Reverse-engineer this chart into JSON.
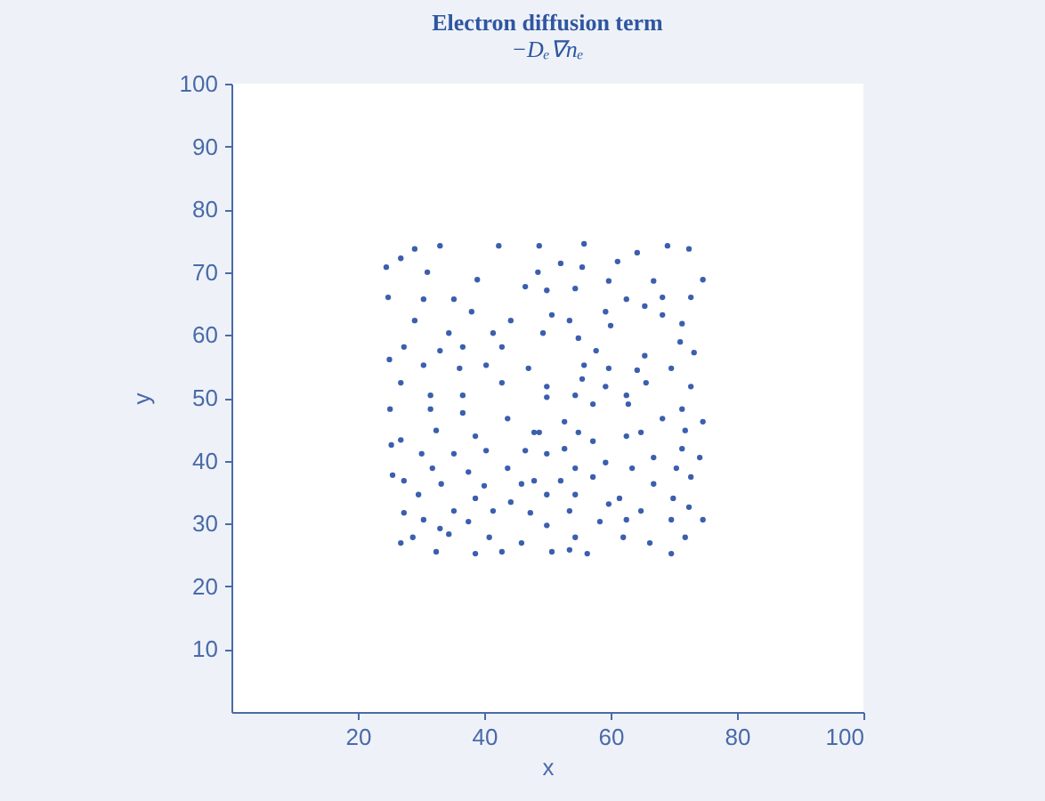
{
  "chart_data": {
    "type": "scatter",
    "title": "Electron diffusion term",
    "subtitle": "−Dₑ∇nₑ",
    "xlabel": "x",
    "ylabel": "y",
    "xlim": [
      0,
      100
    ],
    "xticks": [
      20,
      40,
      60,
      80,
      100
    ],
    "ylim": [
      0,
      100
    ],
    "yticks": [
      10,
      20,
      30,
      40,
      50,
      60,
      70,
      80,
      90,
      100
    ],
    "grid": false,
    "marker": "circle",
    "x": [
      29.0,
      33.0,
      42.3,
      26.8,
      24.5,
      31.0,
      38.9,
      46.5,
      24.8,
      30.4,
      35.2,
      38.0,
      44.2,
      29.0,
      34.4,
      41.4,
      27.3,
      33.0,
      36.6,
      42.8,
      25.0,
      30.4,
      40.3,
      36.1,
      26.8,
      47.0,
      31.5,
      42.8,
      36.6,
      48.7,
      55.8,
      64.2,
      72.4,
      52.1,
      61.1,
      69.0,
      48.5,
      55.5,
      59.7,
      66.8,
      74.6,
      49.9,
      54.4,
      62.5,
      68.2,
      72.7,
      50.7,
      59.2,
      65.4,
      68.2,
      53.5,
      49.3,
      54.9,
      60.0,
      71.3,
      57.7,
      65.4,
      71.0,
      73.2,
      55.8,
      59.7,
      64.2,
      69.6,
      49.9,
      55.5,
      59.2,
      65.6,
      72.7,
      54.4,
      62.5,
      25.1,
      31.5,
      36.6,
      43.7,
      47.9,
      26.8,
      32.4,
      38.6,
      25.3,
      30.1,
      35.2,
      40.3,
      46.5,
      31.8,
      37.5,
      43.7,
      25.5,
      27.3,
      33.2,
      40.0,
      45.9,
      29.6,
      38.6,
      44.2,
      27.3,
      35.2,
      41.4,
      47.3,
      30.4,
      33.0,
      37.5,
      28.7,
      34.4,
      40.8,
      45.9,
      26.8,
      32.4,
      38.6,
      42.8,
      49.9,
      57.2,
      62.8,
      68.2,
      71.3,
      74.6,
      52.7,
      48.7,
      54.9,
      62.5,
      64.8,
      71.8,
      52.7,
      57.2,
      66.8,
      71.3,
      74.1,
      49.9,
      54.4,
      59.2,
      63.4,
      70.4,
      72.7,
      47.9,
      52.1,
      57.2,
      66.8,
      54.4,
      61.4,
      69.9,
      49.9,
      59.7,
      53.5,
      64.8,
      72.4,
      74.6,
      49.9,
      58.3,
      62.5,
      69.6,
      54.4,
      62.0,
      66.2,
      71.8,
      50.7,
      53.5,
      56.3,
      69.6
    ],
    "values": [
      73.7,
      74.2,
      74.2,
      72.2,
      70.8,
      70.0,
      68.8,
      67.7,
      66.0,
      65.7,
      65.7,
      63.7,
      62.3,
      62.3,
      60.3,
      60.3,
      58.1,
      57.5,
      58.1,
      58.1,
      56.1,
      55.2,
      55.2,
      54.7,
      52.4,
      54.7,
      50.4,
      52.4,
      50.4,
      74.2,
      74.5,
      73.1,
      73.7,
      71.4,
      71.7,
      74.2,
      70.0,
      70.8,
      68.6,
      68.6,
      68.8,
      67.1,
      67.4,
      65.7,
      66.0,
      66.0,
      63.2,
      63.7,
      64.6,
      63.2,
      62.3,
      60.3,
      59.5,
      61.5,
      61.8,
      57.5,
      56.7,
      58.9,
      57.2,
      55.2,
      54.7,
      54.4,
      54.7,
      51.8,
      53.0,
      51.8,
      52.4,
      51.8,
      50.4,
      50.4,
      48.2,
      48.2,
      47.6,
      46.7,
      44.5,
      43.3,
      44.8,
      43.9,
      42.5,
      41.1,
      41.1,
      41.6,
      41.6,
      38.8,
      38.2,
      38.8,
      37.7,
      36.8,
      36.3,
      36.0,
      36.3,
      34.6,
      34.0,
      33.4,
      31.7,
      32.0,
      32.0,
      31.7,
      30.6,
      29.2,
      30.3,
      27.8,
      28.3,
      27.8,
      26.9,
      26.9,
      25.5,
      25.2,
      25.5,
      50.1,
      49.0,
      49.0,
      46.7,
      48.2,
      46.2,
      46.2,
      44.5,
      44.5,
      43.9,
      44.5,
      44.8,
      41.9,
      43.1,
      40.5,
      41.9,
      40.5,
      41.1,
      38.8,
      39.7,
      38.8,
      38.8,
      37.4,
      36.8,
      36.8,
      37.4,
      36.3,
      34.6,
      34.0,
      34.0,
      34.6,
      33.1,
      32.0,
      32.0,
      32.6,
      30.6,
      29.7,
      30.3,
      30.6,
      30.6,
      27.8,
      27.8,
      26.9,
      27.8,
      25.5,
      25.8,
      25.2,
      25.2
    ],
    "color": "#3b5fae"
  }
}
